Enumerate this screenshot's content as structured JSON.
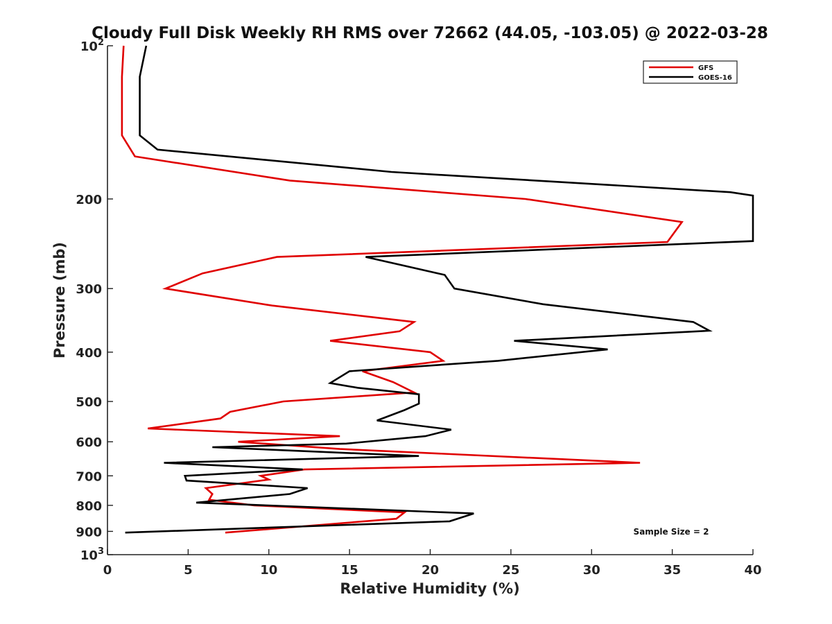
{
  "chart_data": {
    "type": "line",
    "title": "Cloudy Full Disk Weekly RH RMS over 72662 (44.05, -103.05) @ 2022-03-28",
    "xlabel": "Relative Humidity (%)",
    "ylabel": "Pressure (mb)",
    "xlim": [
      0,
      40
    ],
    "ylim": [
      100,
      1000
    ],
    "y_scale": "log",
    "y_reversed": true,
    "x_ticks": [
      "0",
      "5",
      "10",
      "15",
      "20",
      "25",
      "30",
      "35",
      "40"
    ],
    "y_ticks": [
      {
        "value": 100,
        "label": "10",
        "sup": "2"
      },
      {
        "value": 200,
        "label": "200",
        "sup": ""
      },
      {
        "value": 300,
        "label": "300",
        "sup": ""
      },
      {
        "value": 400,
        "label": "400",
        "sup": ""
      },
      {
        "value": 500,
        "label": "500",
        "sup": ""
      },
      {
        "value": 600,
        "label": "600",
        "sup": ""
      },
      {
        "value": 700,
        "label": "700",
        "sup": ""
      },
      {
        "value": 800,
        "label": "800",
        "sup": ""
      },
      {
        "value": 900,
        "label": "900",
        "sup": ""
      },
      {
        "value": 1000,
        "label": "10",
        "sup": "3"
      }
    ],
    "legend_position": "top-right",
    "annotation": "Sample Size = 2",
    "series": [
      {
        "name": "GFS",
        "color": "#e00000",
        "points": [
          [
            1.0,
            100
          ],
          [
            0.9,
            115
          ],
          [
            0.9,
            135
          ],
          [
            0.9,
            150
          ],
          [
            1.7,
            165
          ],
          [
            11.3,
            184
          ],
          [
            25.9,
            200
          ],
          [
            35.6,
            222
          ],
          [
            34.7,
            243
          ],
          [
            10.5,
            260
          ],
          [
            5.9,
            280
          ],
          [
            3.6,
            300
          ],
          [
            10.2,
            324
          ],
          [
            19.0,
            349
          ],
          [
            18.1,
            364
          ],
          [
            13.8,
            380
          ],
          [
            20.0,
            400
          ],
          [
            20.8,
            416
          ],
          [
            15.8,
            436
          ],
          [
            17.7,
            458
          ],
          [
            19.0,
            480
          ],
          [
            10.9,
            500
          ],
          [
            7.6,
            524
          ],
          [
            7.0,
            540
          ],
          [
            2.5,
            565
          ],
          [
            14.4,
            585
          ],
          [
            8.1,
            600
          ],
          [
            14.4,
            620
          ],
          [
            33.0,
            660
          ],
          [
            12.2,
            680
          ],
          [
            9.5,
            700
          ],
          [
            10.0,
            712
          ],
          [
            6.1,
            740
          ],
          [
            6.5,
            760
          ],
          [
            6.3,
            780
          ],
          [
            9.1,
            800
          ],
          [
            18.4,
            826
          ],
          [
            17.9,
            850
          ],
          [
            7.3,
            905
          ]
        ]
      },
      {
        "name": "GOES-16",
        "color": "#000000",
        "points": [
          [
            2.4,
            100
          ],
          [
            2.0,
            115
          ],
          [
            2.0,
            135
          ],
          [
            2.0,
            150
          ],
          [
            3.1,
            160
          ],
          [
            17.6,
            177
          ],
          [
            38.6,
            194
          ],
          [
            40.0,
            197
          ],
          [
            40.0,
            242
          ],
          [
            16.0,
            260
          ],
          [
            20.9,
            282
          ],
          [
            21.5,
            300
          ],
          [
            27.0,
            322
          ],
          [
            36.3,
            349
          ],
          [
            37.3,
            363
          ],
          [
            25.2,
            380
          ],
          [
            31.0,
            395
          ],
          [
            24.2,
            416
          ],
          [
            15.0,
            436
          ],
          [
            13.8,
            460
          ],
          [
            15.5,
            470
          ],
          [
            19.3,
            484
          ],
          [
            19.3,
            505
          ],
          [
            18.4,
            520
          ],
          [
            16.7,
            545
          ],
          [
            21.3,
            568
          ],
          [
            19.7,
            585
          ],
          [
            14.8,
            605
          ],
          [
            6.5,
            615
          ],
          [
            19.3,
            640
          ],
          [
            3.5,
            660
          ],
          [
            12.1,
            680
          ],
          [
            4.8,
            700
          ],
          [
            4.9,
            715
          ],
          [
            12.4,
            740
          ],
          [
            11.3,
            760
          ],
          [
            5.5,
            790
          ],
          [
            22.7,
            830
          ],
          [
            21.2,
            860
          ],
          [
            1.1,
            905
          ]
        ]
      }
    ]
  }
}
